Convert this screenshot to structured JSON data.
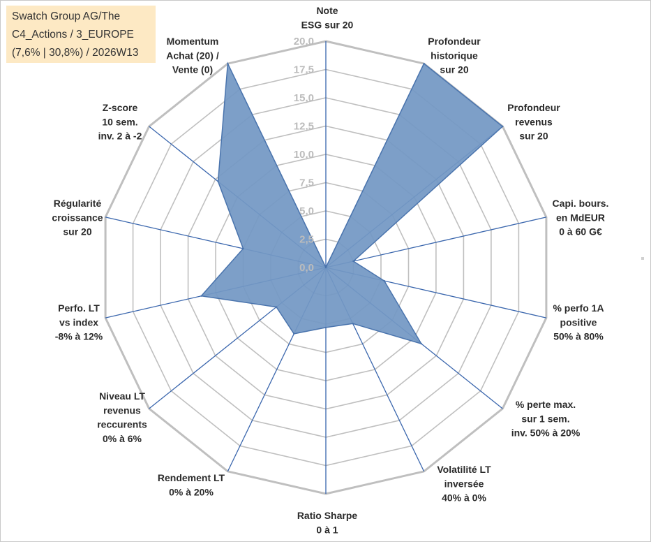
{
  "title_box": {
    "line1": "Swatch Group AG/The",
    "line2": "C4_Actions / 3_EUROPE",
    "line3": "(7,6% | 30,8%) / 2026W13"
  },
  "colors": {
    "fill": "#7398c4",
    "stroke": "#4a74ad",
    "grid": "#bfbfbf",
    "spoke": "#3a66ad",
    "title_bg": "#fde9c4"
  },
  "chart_data": {
    "type": "radar",
    "rmin": 0,
    "rmax": 20,
    "ticks": [
      "0,0",
      "2,5",
      "5,0",
      "7,5",
      "10,0",
      "12,5",
      "15,0",
      "17,5",
      "20,0"
    ],
    "axes": [
      {
        "lines": [
          "Note",
          "ESG sur 20"
        ],
        "value": 0
      },
      {
        "lines": [
          "Profondeur",
          "historique",
          "sur 20"
        ],
        "value": 20
      },
      {
        "lines": [
          "Profondeur",
          "revenus",
          "sur 20"
        ],
        "value": 20
      },
      {
        "lines": [
          "Capi. bours.",
          "en MdEUR",
          "0 à 60 G€"
        ],
        "value": 2.5
      },
      {
        "lines": [
          "% perfo 1A",
          "positive",
          "50% à 80%"
        ],
        "value": 5.3
      },
      {
        "lines": [
          "% perte max.",
          "sur 1 sem.",
          "inv. 50% à 20%"
        ],
        "value": 10.8
      },
      {
        "lines": [
          "Volatilité LT",
          "inversée",
          "40% à 0%"
        ],
        "value": 5.5
      },
      {
        "lines": [
          "Ratio Sharpe",
          "0 à 1"
        ],
        "value": 5.3
      },
      {
        "lines": [
          "Rendement LT",
          "0% à 20%"
        ],
        "value": 6.5
      },
      {
        "lines": [
          "Niveau LT",
          "revenus",
          "reccurents",
          "0% à 6%"
        ],
        "value": 5.6
      },
      {
        "lines": [
          "Perfo. LT",
          "vs index",
          "-8% à 12%"
        ],
        "value": 11.3
      },
      {
        "lines": [
          "Régularité",
          "croissance",
          "sur 20"
        ],
        "value": 7.5
      },
      {
        "lines": [
          "Z-score",
          "10 sem.",
          "inv. 2 à -2"
        ],
        "value": 12.2
      },
      {
        "lines": [
          "Momentum",
          "Achat (20) /",
          "Vente (0)"
        ],
        "value": 20
      }
    ]
  }
}
